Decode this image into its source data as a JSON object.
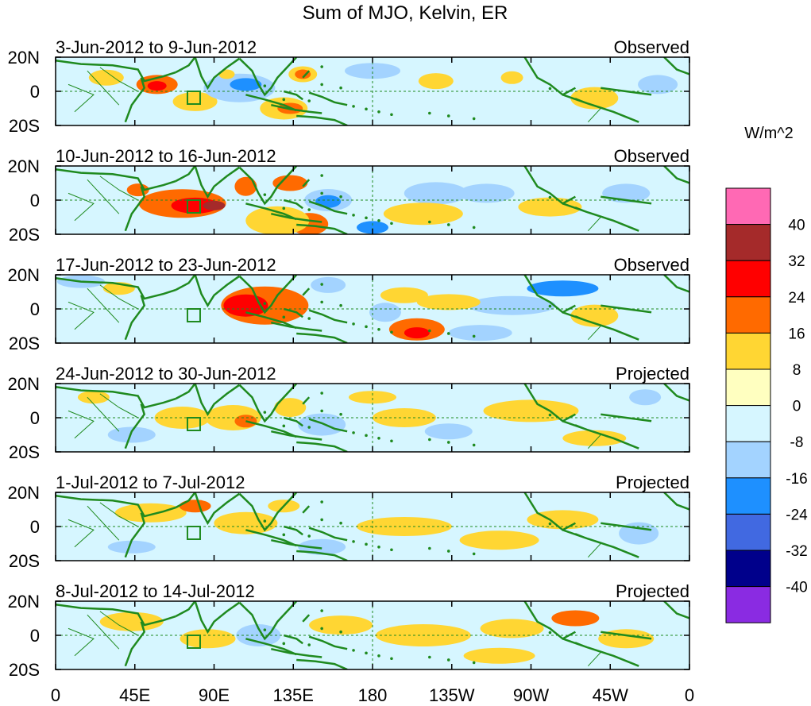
{
  "title": "Sum of MJO, Kelvin, ER",
  "panels": [
    {
      "period": "3-Jun-2012 to 9-Jun-2012",
      "status": "Observed"
    },
    {
      "period": "10-Jun-2012 to 16-Jun-2012",
      "status": "Observed"
    },
    {
      "period": "17-Jun-2012 to 23-Jun-2012",
      "status": "Observed"
    },
    {
      "period": "24-Jun-2012 to 30-Jun-2012",
      "status": "Projected"
    },
    {
      "period": "1-Jul-2012 to 7-Jul-2012",
      "status": "Projected"
    },
    {
      "period": "8-Jul-2012 to 14-Jul-2012",
      "status": "Projected"
    }
  ],
  "lat_labels": [
    "20N",
    "0",
    "20S"
  ],
  "lon_labels": [
    "0",
    "45E",
    "90E",
    "135E",
    "180",
    "135W",
    "90W",
    "45W",
    "0"
  ],
  "colorbar": {
    "units": "W/m^2",
    "tick_labels": [
      "40",
      "32",
      "24",
      "16",
      "8",
      "0",
      "-8",
      "-16",
      "-24",
      "-32",
      "-40"
    ],
    "colors": [
      "#ff69b4",
      "#a52a2a",
      "#ff0000",
      "#ff6a00",
      "#ffd633",
      "#ffffc0",
      "#d6f6ff",
      "#a3d3ff",
      "#1e90ff",
      "#4169e1",
      "#00008b",
      "#8a2be2"
    ]
  },
  "features": {
    "coast_color": "#1f8a1f",
    "background_color": "#d6f6ff"
  }
}
